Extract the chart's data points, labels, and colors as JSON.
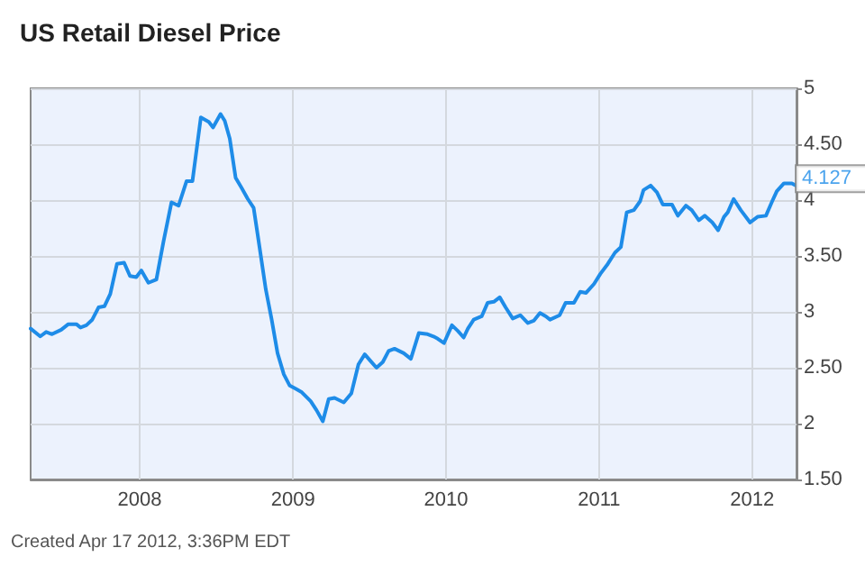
{
  "chart_data": {
    "type": "line",
    "title": "US Retail Diesel Price",
    "annotations": [
      {
        "text": "4.127",
        "x": "2012-04-16",
        "y": 4.127
      },
      "Created Apr 17 2012, 3:36PM EDT"
    ],
    "xlim": [
      "2007-04-16",
      "2012-04-16"
    ],
    "xticks": [
      "2008",
      "2009",
      "2010",
      "2011",
      "2012"
    ],
    "ylim": [
      1.5,
      5
    ],
    "yticks": [
      {
        "value": 1.5,
        "label": "1.50"
      },
      2,
      {
        "value": 2.5,
        "label": "2.50"
      },
      3,
      {
        "value": 3.5,
        "label": "3.50"
      },
      4,
      {
        "value": 4.5,
        "label": "4.50"
      },
      5
    ],
    "grid": true,
    "marker": "none",
    "line_style": "solid",
    "x": [
      "2007-04-16",
      "2007-05-09",
      "2007-05-23",
      "2007-06-06",
      "2007-06-28",
      "2007-07-15",
      "2007-08-03",
      "2007-08-13",
      "2007-08-27",
      "2007-09-10",
      "2007-09-25",
      "2007-10-09",
      "2007-10-23",
      "2007-11-08",
      "2007-11-25",
      "2007-12-09",
      "2007-12-24",
      "2008-01-05",
      "2008-01-22",
      "2008-02-10",
      "2008-02-27",
      "2008-03-17",
      "2008-04-03",
      "2008-04-22",
      "2008-05-06",
      "2008-05-26",
      "2008-06-14",
      "2008-06-24",
      "2008-07-12",
      "2008-07-22",
      "2008-08-03",
      "2008-08-17",
      "2008-08-31",
      "2008-09-15",
      "2008-09-29",
      "2008-10-13",
      "2008-10-28",
      "2008-11-11",
      "2008-11-25",
      "2008-12-10",
      "2008-12-24",
      "2009-01-08",
      "2009-01-22",
      "2009-02-12",
      "2009-02-26",
      "2009-03-13",
      "2009-03-27",
      "2009-04-10",
      "2009-05-02",
      "2009-05-20",
      "2009-06-06",
      "2009-06-21",
      "2009-07-05",
      "2009-07-19",
      "2009-08-03",
      "2009-08-17",
      "2009-08-31",
      "2009-09-22",
      "2009-10-09",
      "2009-10-28",
      "2009-11-18",
      "2009-12-02",
      "2009-12-12",
      "2009-12-27",
      "2010-01-15",
      "2010-01-29",
      "2010-02-12",
      "2010-02-22",
      "2010-03-08",
      "2010-03-27",
      "2010-04-10",
      "2010-04-25",
      "2010-05-09",
      "2010-05-23",
      "2010-06-09",
      "2010-06-27",
      "2010-07-15",
      "2010-07-29",
      "2010-08-13",
      "2010-08-27",
      "2010-09-06",
      "2010-09-29",
      "2010-10-13",
      "2010-11-02",
      "2010-11-17",
      "2010-12-01",
      "2010-12-20",
      "2011-01-04",
      "2011-01-22",
      "2011-02-08",
      "2011-02-22",
      "2011-03-08",
      "2011-03-25",
      "2011-04-09",
      "2011-04-17",
      "2011-05-04",
      "2011-05-19",
      "2011-06-02",
      "2011-06-24",
      "2011-07-08",
      "2011-07-27",
      "2011-08-10",
      "2011-08-27",
      "2011-09-10",
      "2011-09-28",
      "2011-10-12",
      "2011-10-26",
      "2011-11-04",
      "2011-11-18",
      "2011-12-05",
      "2011-12-27",
      "2012-01-14",
      "2012-02-03",
      "2012-02-18",
      "2012-02-29",
      "2012-03-17",
      "2012-04-05",
      "2012-04-16"
    ],
    "series": [
      {
        "color": "#1e8ce8",
        "values": [
          2.85,
          2.78,
          2.82,
          2.8,
          2.84,
          2.89,
          2.89,
          2.86,
          2.88,
          2.93,
          3.04,
          3.05,
          3.16,
          3.43,
          3.44,
          3.32,
          3.31,
          3.37,
          3.26,
          3.29,
          3.63,
          3.98,
          3.95,
          4.17,
          4.17,
          4.74,
          4.7,
          4.65,
          4.77,
          4.71,
          4.55,
          4.2,
          4.11,
          4.01,
          3.93,
          3.58,
          3.2,
          2.93,
          2.63,
          2.44,
          2.34,
          2.31,
          2.28,
          2.2,
          2.12,
          2.02,
          2.22,
          2.23,
          2.19,
          2.27,
          2.53,
          2.62,
          2.56,
          2.5,
          2.55,
          2.65,
          2.67,
          2.63,
          2.58,
          2.81,
          2.8,
          2.78,
          2.76,
          2.72,
          2.88,
          2.83,
          2.77,
          2.85,
          2.93,
          2.96,
          3.08,
          3.09,
          3.13,
          3.04,
          2.94,
          2.97,
          2.9,
          2.92,
          2.99,
          2.96,
          2.93,
          2.97,
          3.08,
          3.08,
          3.18,
          3.17,
          3.25,
          3.34,
          3.43,
          3.53,
          3.58,
          3.89,
          3.91,
          3.99,
          4.09,
          4.13,
          4.07,
          3.96,
          3.96,
          3.86,
          3.95,
          3.91,
          3.82,
          3.86,
          3.8,
          3.73,
          3.85,
          3.89,
          4.01,
          3.91,
          3.8,
          3.85,
          3.86,
          3.99,
          4.08,
          4.15,
          4.15,
          4.127
        ]
      }
    ]
  }
}
